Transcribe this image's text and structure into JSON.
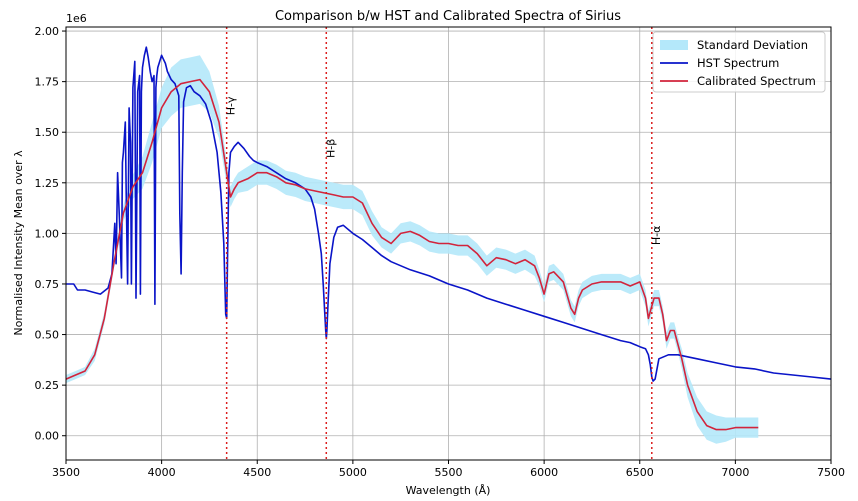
{
  "chart_data": {
    "type": "line",
    "title": "Comparison b/w HST and Calibrated Spectra of Sirius",
    "xlabel": "Wavelength (Å)",
    "ylabel": "Normalised Intensity Mean over λ",
    "y_offset_label": "1e6",
    "xlim": [
      3500,
      7500
    ],
    "ylim": [
      -0.12,
      2.02
    ],
    "x_ticks": [
      3500,
      4000,
      4500,
      5000,
      5500,
      6000,
      6500,
      7000,
      7500
    ],
    "y_ticks": [
      0.0,
      0.25,
      0.5,
      0.75,
      1.0,
      1.25,
      1.5,
      1.75,
      2.0
    ],
    "x_tick_labels": [
      "3500",
      "4000",
      "4500",
      "5000",
      "5500",
      "6000",
      "6500",
      "7000",
      "7500"
    ],
    "y_tick_labels": [
      "0.00",
      "0.25",
      "0.50",
      "0.75",
      "1.00",
      "1.25",
      "1.50",
      "1.75",
      "2.00"
    ],
    "grid": true,
    "legend_position": "top-right",
    "colors": {
      "hst": "#0a14c8",
      "calibrated": "#d2243c",
      "std": "#b4e8fa",
      "lines": "#dc1e1e"
    },
    "vertical_lines": [
      {
        "x": 4340,
        "label": "H-γ",
        "label_y": 1.63
      },
      {
        "x": 4861,
        "label": "H-β",
        "label_y": 1.42
      },
      {
        "x": 6563,
        "label": "H-α",
        "label_y": 0.99
      }
    ],
    "series": [
      {
        "name": "HST Spectrum",
        "key": "hst",
        "x": [
          3500,
          3540,
          3560,
          3600,
          3640,
          3680,
          3720,
          3740,
          3755,
          3762,
          3770,
          3780,
          3790,
          3795,
          3800,
          3810,
          3815,
          3822,
          3830,
          3837,
          3842,
          3850,
          3860,
          3866,
          3875,
          3885,
          3889,
          3894,
          3900,
          3910,
          3920,
          3930,
          3940,
          3950,
          3960,
          3965,
          3970,
          3975,
          3980,
          3990,
          4000,
          4010,
          4020,
          4030,
          4050,
          4070,
          4090,
          4095,
          4102,
          4108,
          4115,
          4130,
          4150,
          4170,
          4200,
          4230,
          4260,
          4290,
          4310,
          4325,
          4335,
          4340,
          4345,
          4352,
          4360,
          4380,
          4400,
          4430,
          4460,
          4480,
          4500,
          4550,
          4600,
          4650,
          4700,
          4750,
          4780,
          4800,
          4820,
          4835,
          4845,
          4852,
          4858,
          4861,
          4864,
          4870,
          4880,
          4900,
          4920,
          4950,
          5000,
          5050,
          5100,
          5150,
          5200,
          5300,
          5400,
          5500,
          5600,
          5700,
          5800,
          5900,
          6000,
          6100,
          6200,
          6300,
          6400,
          6450,
          6500,
          6530,
          6545,
          6555,
          6563,
          6570,
          6580,
          6600,
          6650,
          6700,
          6800,
          6900,
          7000,
          7100,
          7200,
          7300,
          7400,
          7500
        ],
        "y": [
          0.75,
          0.75,
          0.72,
          0.72,
          0.71,
          0.7,
          0.73,
          0.8,
          1.05,
          0.85,
          1.3,
          1.05,
          0.78,
          1.35,
          1.4,
          1.55,
          1.2,
          0.75,
          1.62,
          1.45,
          0.75,
          1.72,
          1.85,
          0.68,
          1.7,
          1.78,
          0.7,
          1.7,
          1.82,
          1.88,
          1.92,
          1.87,
          1.8,
          1.75,
          1.78,
          0.65,
          1.72,
          1.78,
          1.82,
          1.85,
          1.88,
          1.86,
          1.84,
          1.8,
          1.76,
          1.74,
          1.68,
          1.1,
          0.8,
          1.3,
          1.65,
          1.72,
          1.73,
          1.7,
          1.68,
          1.64,
          1.55,
          1.4,
          1.2,
          0.95,
          0.6,
          0.58,
          0.9,
          1.3,
          1.4,
          1.43,
          1.45,
          1.42,
          1.38,
          1.36,
          1.35,
          1.33,
          1.3,
          1.27,
          1.25,
          1.22,
          1.18,
          1.12,
          1.0,
          0.9,
          0.75,
          0.62,
          0.52,
          0.48,
          0.52,
          0.65,
          0.85,
          0.98,
          1.03,
          1.04,
          1.0,
          0.97,
          0.93,
          0.89,
          0.86,
          0.82,
          0.79,
          0.75,
          0.72,
          0.68,
          0.65,
          0.62,
          0.59,
          0.56,
          0.53,
          0.5,
          0.47,
          0.46,
          0.44,
          0.43,
          0.4,
          0.35,
          0.29,
          0.27,
          0.28,
          0.38,
          0.4,
          0.4,
          0.38,
          0.36,
          0.34,
          0.33,
          0.31,
          0.3,
          0.29,
          0.28
        ]
      },
      {
        "name": "Calibrated Spectrum",
        "key": "calibrated",
        "x": [
          3500,
          3550,
          3600,
          3650,
          3700,
          3750,
          3800,
          3850,
          3900,
          3950,
          4000,
          4050,
          4100,
          4150,
          4200,
          4250,
          4300,
          4340,
          4360,
          4380,
          4400,
          4450,
          4500,
          4550,
          4600,
          4650,
          4700,
          4750,
          4800,
          4850,
          4900,
          4950,
          5000,
          5050,
          5100,
          5150,
          5200,
          5250,
          5300,
          5350,
          5400,
          5450,
          5500,
          5550,
          5600,
          5650,
          5700,
          5750,
          5800,
          5850,
          5900,
          5950,
          5975,
          6000,
          6025,
          6050,
          6100,
          6140,
          6160,
          6180,
          6200,
          6250,
          6300,
          6350,
          6400,
          6450,
          6500,
          6530,
          6545,
          6560,
          6575,
          6600,
          6620,
          6640,
          6660,
          6680,
          6700,
          6720,
          6750,
          6800,
          6850,
          6900,
          6950,
          7000,
          7050,
          7100,
          7120
        ],
        "y": [
          0.28,
          0.3,
          0.32,
          0.4,
          0.58,
          0.85,
          1.1,
          1.23,
          1.3,
          1.45,
          1.62,
          1.7,
          1.74,
          1.75,
          1.76,
          1.7,
          1.55,
          1.3,
          1.18,
          1.22,
          1.25,
          1.27,
          1.3,
          1.3,
          1.28,
          1.25,
          1.24,
          1.22,
          1.21,
          1.2,
          1.19,
          1.18,
          1.18,
          1.15,
          1.05,
          0.98,
          0.95,
          1.0,
          1.01,
          0.99,
          0.96,
          0.95,
          0.95,
          0.94,
          0.94,
          0.9,
          0.84,
          0.88,
          0.87,
          0.85,
          0.87,
          0.84,
          0.78,
          0.7,
          0.8,
          0.81,
          0.76,
          0.63,
          0.6,
          0.68,
          0.72,
          0.75,
          0.76,
          0.76,
          0.76,
          0.74,
          0.76,
          0.68,
          0.58,
          0.63,
          0.68,
          0.68,
          0.6,
          0.47,
          0.52,
          0.52,
          0.45,
          0.38,
          0.25,
          0.12,
          0.05,
          0.03,
          0.03,
          0.04,
          0.04,
          0.04,
          0.04
        ]
      },
      {
        "name": "Standard Deviation",
        "key": "std",
        "band_half_width": [
          0.02,
          0.02,
          0.02,
          0.03,
          0.03,
          0.03,
          0.04,
          0.06,
          0.08,
          0.1,
          0.1,
          0.12,
          0.12,
          0.12,
          0.12,
          0.1,
          0.08,
          0.06,
          0.05,
          0.05,
          0.05,
          0.06,
          0.06,
          0.06,
          0.06,
          0.06,
          0.06,
          0.06,
          0.06,
          0.06,
          0.06,
          0.06,
          0.06,
          0.06,
          0.06,
          0.05,
          0.05,
          0.05,
          0.05,
          0.05,
          0.05,
          0.05,
          0.05,
          0.05,
          0.05,
          0.05,
          0.05,
          0.05,
          0.05,
          0.05,
          0.05,
          0.05,
          0.04,
          0.04,
          0.04,
          0.04,
          0.04,
          0.04,
          0.04,
          0.04,
          0.04,
          0.04,
          0.04,
          0.04,
          0.04,
          0.04,
          0.04,
          0.04,
          0.04,
          0.04,
          0.04,
          0.04,
          0.04,
          0.04,
          0.04,
          0.04,
          0.04,
          0.05,
          0.06,
          0.07,
          0.07,
          0.07,
          0.06,
          0.05,
          0.05,
          0.05,
          0.05
        ]
      }
    ],
    "legend": [
      {
        "label": "Standard Deviation",
        "key": "std",
        "kind": "band"
      },
      {
        "label": "HST Spectrum",
        "key": "hst",
        "kind": "line"
      },
      {
        "label": "Calibrated Spectrum",
        "key": "calibrated",
        "kind": "line"
      }
    ]
  }
}
